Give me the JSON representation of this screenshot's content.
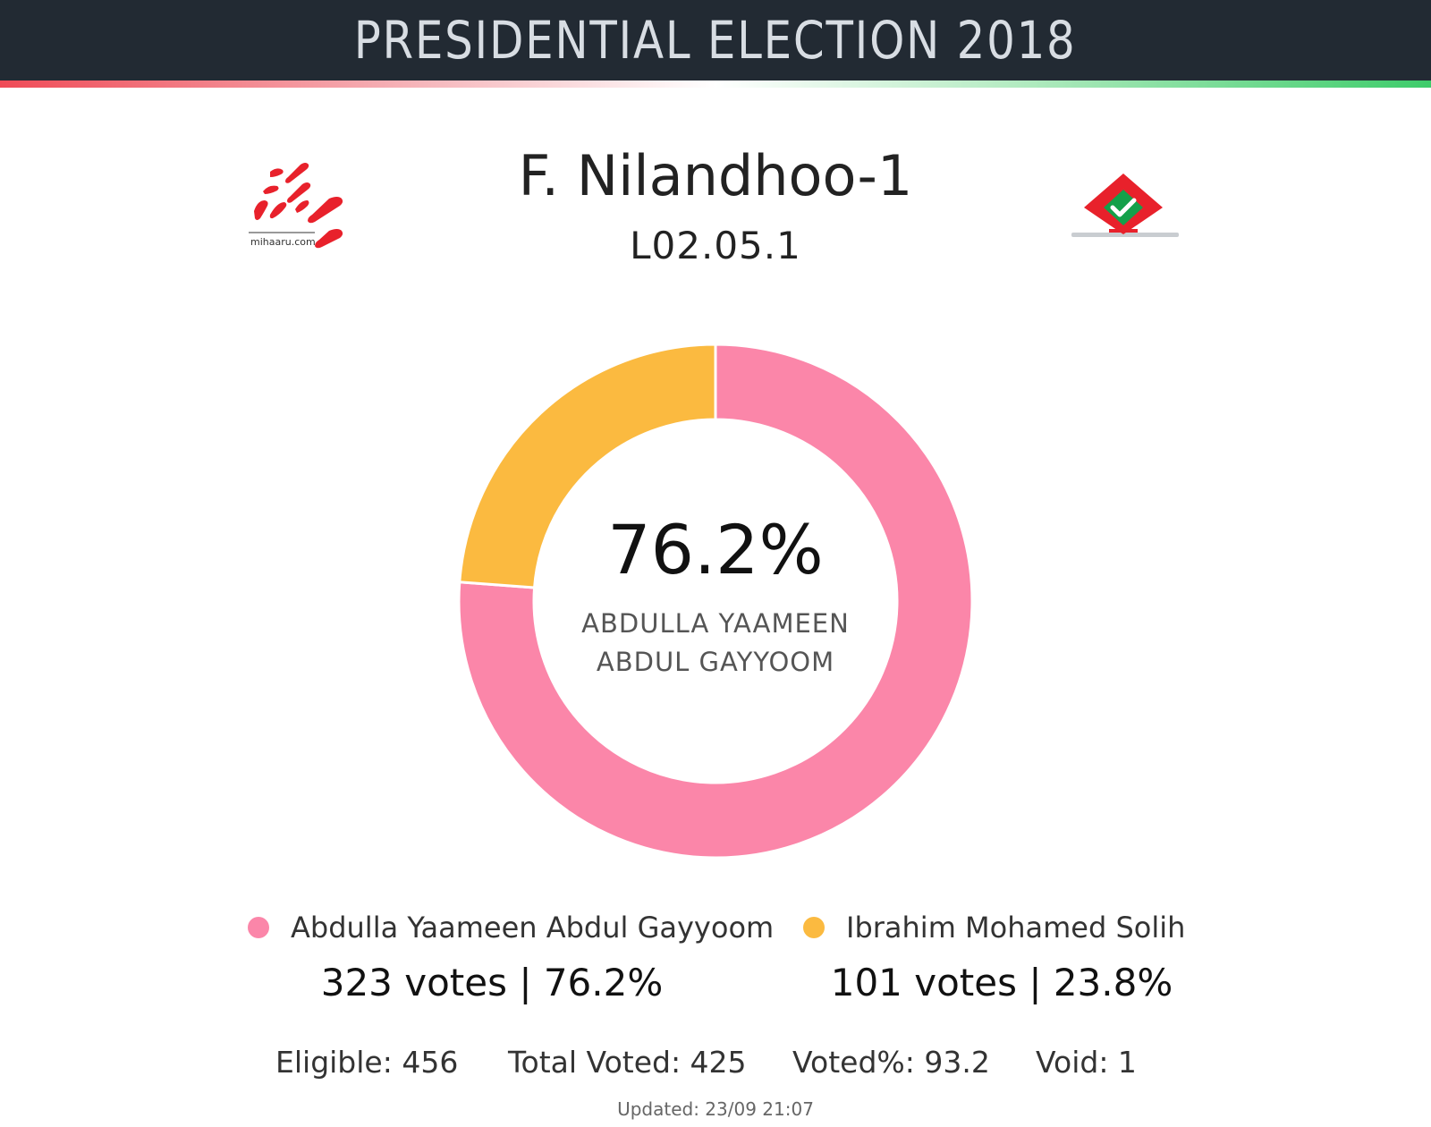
{
  "header": {
    "title": "PRESIDENTIAL ELECTION 2018"
  },
  "logos": {
    "left_text": "mihaaru.com"
  },
  "location": {
    "name": "F. Nilandhoo-1",
    "code": "L02.05.1"
  },
  "center": {
    "percent": "76.2%",
    "name_line1": "ABDULLA YAAMEEN",
    "name_line2": "ABDUL GAYYOOM"
  },
  "candidates": [
    {
      "name": "Abdulla Yaameen Abdul Gayyoom",
      "votes_text": "323 votes | 76.2%",
      "color": "#fb86a9"
    },
    {
      "name": "Ibrahim Mohamed Solih",
      "votes_text": "101 votes | 23.8%",
      "color": "#fbba40"
    }
  ],
  "stats": {
    "eligible": "Eligible: 456",
    "total_voted": "Total Voted: 425",
    "voted_pct": "Voted%: 93.2",
    "void": "Void: 1"
  },
  "updated": "Updated: 23/09 21:07",
  "chart_data": {
    "type": "pie",
    "categories": [
      "Abdulla Yaameen Abdul Gayyoom",
      "Ibrahim Mohamed Solih"
    ],
    "values": [
      323,
      101
    ],
    "percentages": [
      76.2,
      23.8
    ],
    "colors": [
      "#fb86a9",
      "#fbba40"
    ]
  }
}
